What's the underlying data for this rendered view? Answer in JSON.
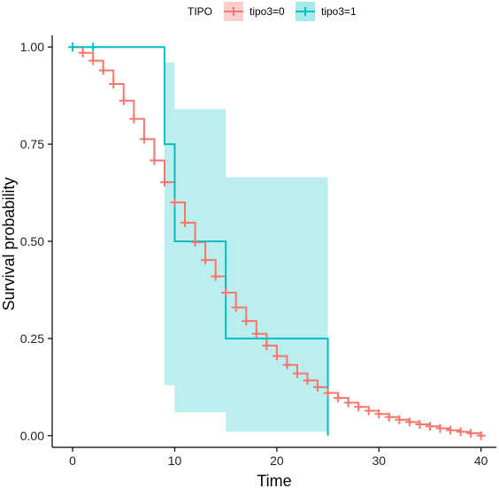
{
  "chart_data": {
    "type": "line",
    "subtype": "kaplan-meier-step",
    "xlabel": "Time",
    "ylabel": "Survival probability",
    "xlim": [
      -2,
      41.5
    ],
    "ylim": [
      -0.03,
      1.03
    ],
    "xticks": [
      0,
      10,
      20,
      30,
      40
    ],
    "yticks": [
      0.0,
      0.25,
      0.5,
      0.75,
      1.0
    ],
    "ytick_labels": [
      "0.00",
      "0.25",
      "0.50",
      "0.75",
      "1.00"
    ],
    "grid": false,
    "legend": {
      "title": "TIPO",
      "placement": "top",
      "entries": [
        "tipo3=0",
        "tipo3=1"
      ]
    },
    "series": [
      {
        "name": "tipo3=0",
        "color": "#F8766D",
        "times": [
          0,
          1,
          2,
          3,
          4,
          5,
          6,
          7,
          8,
          9,
          10,
          11,
          12,
          13,
          14,
          15,
          16,
          17,
          18,
          19,
          20,
          21,
          22,
          23,
          24,
          25,
          26,
          27,
          28,
          29,
          30,
          31,
          32,
          33,
          34,
          35,
          36,
          37,
          38,
          39,
          40
        ],
        "values": [
          1.0,
          0.985,
          0.965,
          0.94,
          0.905,
          0.862,
          0.815,
          0.763,
          0.708,
          0.652,
          0.6,
          0.548,
          0.498,
          0.452,
          0.41,
          0.368,
          0.33,
          0.295,
          0.262,
          0.232,
          0.205,
          0.182,
          0.16,
          0.142,
          0.125,
          0.11,
          0.097,
          0.085,
          0.074,
          0.064,
          0.056,
          0.048,
          0.041,
          0.035,
          0.029,
          0.024,
          0.019,
          0.014,
          0.01,
          0.006,
          0.0
        ],
        "censor_times": [
          1,
          2,
          3,
          4,
          5,
          6,
          7,
          8,
          9,
          10,
          11,
          12,
          13,
          14,
          15,
          16,
          17,
          18,
          19,
          20,
          21,
          22,
          23,
          24,
          25,
          26,
          27,
          28,
          29,
          30,
          31,
          32,
          33,
          34,
          35,
          36,
          37,
          38,
          39,
          40
        ],
        "censor_values": [
          0.985,
          0.965,
          0.94,
          0.905,
          0.862,
          0.815,
          0.763,
          0.708,
          0.652,
          0.6,
          0.548,
          0.498,
          0.452,
          0.41,
          0.368,
          0.33,
          0.295,
          0.262,
          0.232,
          0.205,
          0.182,
          0.16,
          0.142,
          0.125,
          0.11,
          0.097,
          0.085,
          0.074,
          0.064,
          0.056,
          0.048,
          0.041,
          0.035,
          0.029,
          0.024,
          0.019,
          0.014,
          0.01,
          0.006,
          0.0
        ]
      },
      {
        "name": "tipo3=1",
        "color": "#00BFC4",
        "times": [
          0,
          9,
          10,
          15,
          25
        ],
        "values": [
          1.0,
          0.75,
          0.5,
          0.25,
          0.0
        ],
        "censor_times": [
          0,
          2
        ],
        "censor_values": [
          1.0,
          1.0
        ],
        "ci_times": [
          0,
          9,
          10,
          15,
          25
        ],
        "ci_lower": [
          1.0,
          0.13,
          0.06,
          0.01,
          0.0
        ],
        "ci_upper": [
          1.0,
          0.96,
          0.84,
          0.665,
          0.665
        ]
      }
    ]
  }
}
